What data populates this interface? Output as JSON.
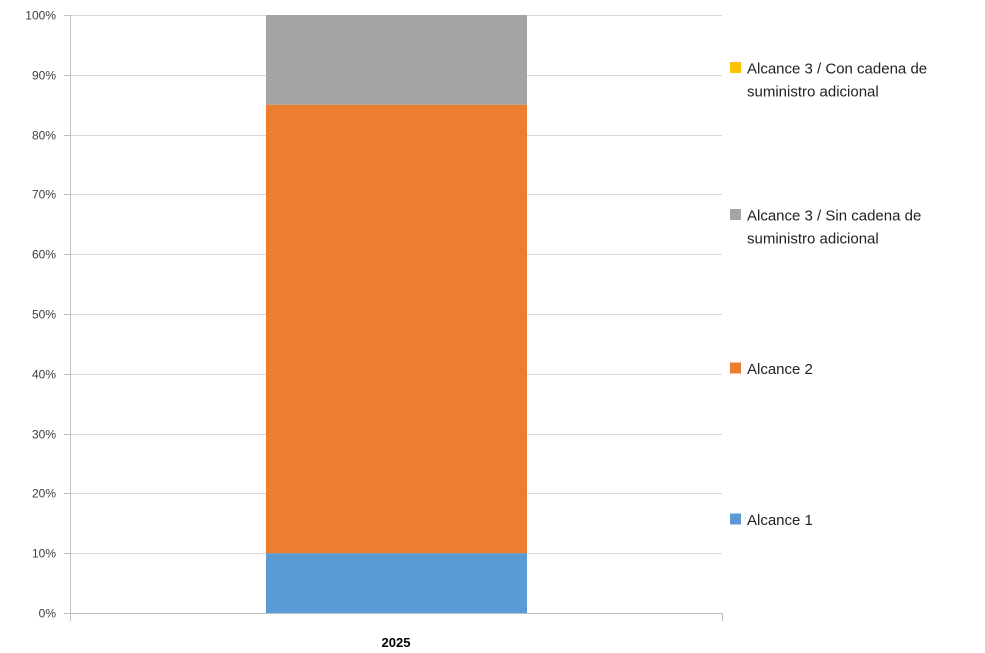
{
  "chart_data": {
    "type": "bar",
    "stacked": true,
    "categories": [
      "2025"
    ],
    "series": [
      {
        "name": "Alcance 1",
        "values": [
          10
        ],
        "color": "#5B9BD5"
      },
      {
        "name": "Alcance 2",
        "values": [
          75
        ],
        "color": "#ED7D31"
      },
      {
        "name": "Alcance 3 / Sin cadena de suministro adicional",
        "values": [
          15
        ],
        "color": "#A5A5A5"
      },
      {
        "name": "Alcance 3 / Con cadena de suministro adicional",
        "values": [
          0
        ],
        "color": "#FFC000"
      }
    ],
    "legend": {
      "position": "right",
      "entries": [
        {
          "series_index": 3,
          "lines": [
            "Alcance 3 / Con cadena de",
            "suministro adicional"
          ]
        },
        {
          "series_index": 2,
          "lines": [
            "Alcance 3 / Sin cadena de",
            "suministro adicional"
          ]
        },
        {
          "series_index": 1,
          "lines": [
            "Alcance 2"
          ]
        },
        {
          "series_index": 0,
          "lines": [
            "Alcance 1"
          ]
        }
      ]
    },
    "yticks": [
      "0%",
      "10%",
      "20%",
      "30%",
      "40%",
      "50%",
      "60%",
      "70%",
      "80%",
      "90%",
      "100%"
    ],
    "ylim": [
      0,
      100
    ],
    "yunit": "%",
    "grid": true,
    "gridline_color": "#D9D9D9"
  }
}
